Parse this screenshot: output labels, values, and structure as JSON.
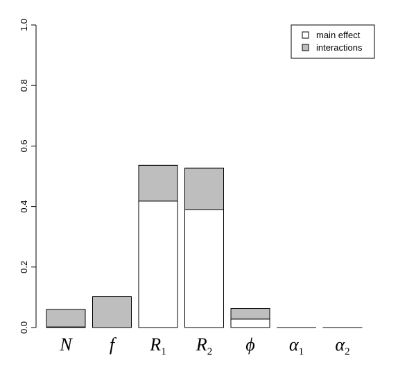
{
  "chart_data": {
    "type": "bar",
    "stacked": true,
    "categories": [
      {
        "label": "N",
        "sub": ""
      },
      {
        "label": "f",
        "sub": ""
      },
      {
        "label": "R",
        "sub": "1"
      },
      {
        "label": "R",
        "sub": "2"
      },
      {
        "label": "ϕ",
        "sub": ""
      },
      {
        "label": "α",
        "sub": "1"
      },
      {
        "label": "α",
        "sub": "2"
      }
    ],
    "series": [
      {
        "name": "main effect",
        "color": "#ffffff",
        "values": [
          0.002,
          0.0,
          0.418,
          0.39,
          0.028,
          0.0,
          0.0
        ]
      },
      {
        "name": "interactions",
        "color": "#bebebe",
        "values": [
          0.058,
          0.102,
          0.118,
          0.137,
          0.035,
          0.0,
          0.0
        ]
      }
    ],
    "ylim": [
      0,
      1.0
    ],
    "yticks": [
      "0.0",
      "0.2",
      "0.4",
      "0.6",
      "0.8",
      "1.0"
    ],
    "title": "",
    "xlabel": "",
    "ylabel": "",
    "grid": false,
    "legend_position": "top-right"
  }
}
